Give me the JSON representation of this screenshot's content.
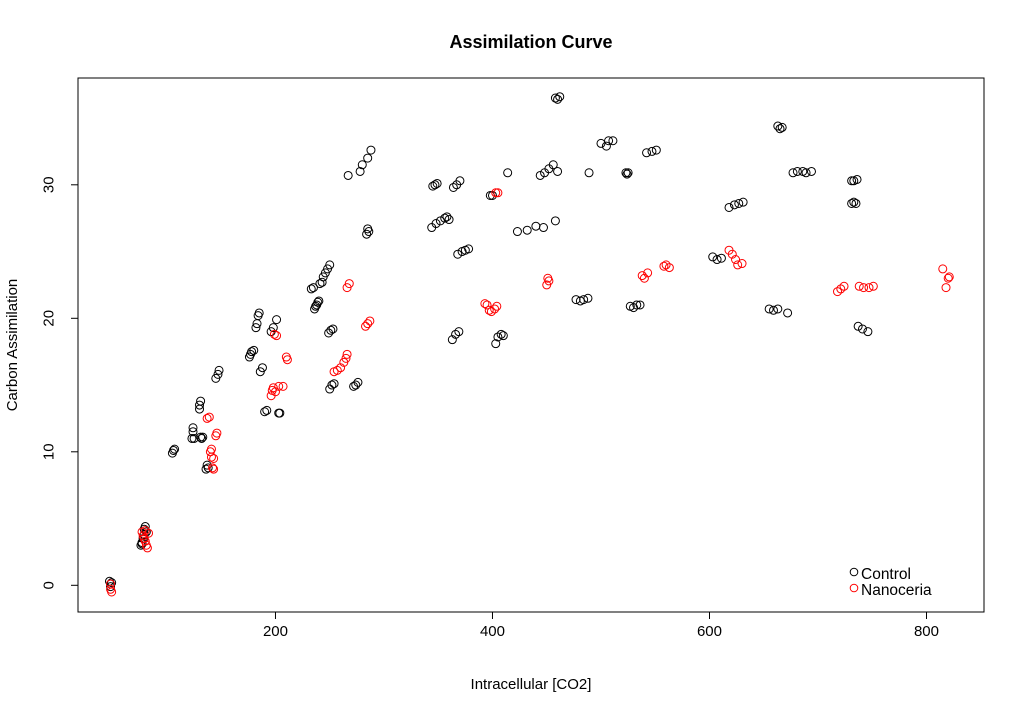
{
  "chart_data": {
    "type": "scatter",
    "title": "Assimilation Curve",
    "xlabel": "Intracellular [CO2]",
    "ylabel": "Carbon Assimilation",
    "xlim": [
      18,
      853
    ],
    "ylim": [
      -2,
      38
    ],
    "xticks": [
      200,
      400,
      600,
      800
    ],
    "yticks": [
      0,
      10,
      20,
      30
    ],
    "grid": false,
    "legend_position": "bottom-right",
    "series": [
      {
        "name": "Control",
        "color": "#000000",
        "marker": "open-circle",
        "points": [
          [
            47,
            0.3
          ],
          [
            48,
            0.1
          ],
          [
            48,
            -0.1
          ],
          [
            49,
            0.2
          ],
          [
            76,
            3.0
          ],
          [
            77,
            3.2
          ],
          [
            77,
            3.1
          ],
          [
            78,
            3.5
          ],
          [
            79,
            3.8
          ],
          [
            79,
            4.2
          ],
          [
            80,
            4.4
          ],
          [
            81,
            4.0
          ],
          [
            105,
            9.9
          ],
          [
            106,
            10.1
          ],
          [
            107,
            10.2
          ],
          [
            123,
            11.0
          ],
          [
            124,
            11.5
          ],
          [
            124,
            11.8
          ],
          [
            125,
            11.0
          ],
          [
            130,
            13.2
          ],
          [
            130,
            13.5
          ],
          [
            131,
            13.8
          ],
          [
            131,
            11.1
          ],
          [
            132,
            11.0
          ],
          [
            133,
            11.1
          ],
          [
            136,
            8.7
          ],
          [
            137,
            9.0
          ],
          [
            138,
            8.8
          ],
          [
            145,
            15.5
          ],
          [
            147,
            15.8
          ],
          [
            148,
            16.1
          ],
          [
            176,
            17.1
          ],
          [
            177,
            17.3
          ],
          [
            178,
            17.5
          ],
          [
            180,
            17.6
          ],
          [
            182,
            19.3
          ],
          [
            183,
            19.6
          ],
          [
            184,
            20.2
          ],
          [
            185,
            20.4
          ],
          [
            186,
            16.0
          ],
          [
            188,
            16.3
          ],
          [
            190,
            13.0
          ],
          [
            192,
            13.1
          ],
          [
            196,
            19.0
          ],
          [
            198,
            19.3
          ],
          [
            201,
            19.9
          ],
          [
            203,
            12.9
          ],
          [
            204,
            12.9
          ],
          [
            233,
            22.2
          ],
          [
            235,
            22.3
          ],
          [
            236,
            20.7
          ],
          [
            237,
            20.9
          ],
          [
            238,
            21.0
          ],
          [
            239,
            21.2
          ],
          [
            240,
            21.3
          ],
          [
            241,
            22.6
          ],
          [
            243,
            22.7
          ],
          [
            244,
            23.1
          ],
          [
            246,
            23.4
          ],
          [
            248,
            23.7
          ],
          [
            250,
            24.0
          ],
          [
            249,
            18.9
          ],
          [
            251,
            19.1
          ],
          [
            253,
            19.2
          ],
          [
            250,
            14.7
          ],
          [
            252,
            15.0
          ],
          [
            254,
            15.1
          ],
          [
            267,
            30.7
          ],
          [
            272,
            14.9
          ],
          [
            274,
            15.0
          ],
          [
            276,
            15.2
          ],
          [
            278,
            31.0
          ],
          [
            280,
            31.5
          ],
          [
            284,
            26.3
          ],
          [
            285,
            26.7
          ],
          [
            286,
            26.5
          ],
          [
            285,
            32.0
          ],
          [
            288,
            32.6
          ],
          [
            344,
            26.8
          ],
          [
            348,
            27.1
          ],
          [
            352,
            27.3
          ],
          [
            356,
            27.5
          ],
          [
            358,
            27.6
          ],
          [
            360,
            27.4
          ],
          [
            345,
            29.9
          ],
          [
            347,
            30.0
          ],
          [
            349,
            30.1
          ],
          [
            363,
            18.4
          ],
          [
            366,
            18.8
          ],
          [
            369,
            19.0
          ],
          [
            368,
            24.8
          ],
          [
            372,
            25.0
          ],
          [
            375,
            25.1
          ],
          [
            378,
            25.2
          ],
          [
            364,
            29.8
          ],
          [
            367,
            30.0
          ],
          [
            370,
            30.3
          ],
          [
            398,
            29.2
          ],
          [
            400,
            29.2
          ],
          [
            403,
            18.1
          ],
          [
            405,
            18.6
          ],
          [
            408,
            18.8
          ],
          [
            410,
            18.7
          ],
          [
            414,
            30.9
          ],
          [
            423,
            26.5
          ],
          [
            432,
            26.6
          ],
          [
            440,
            26.9
          ],
          [
            444,
            30.7
          ],
          [
            448,
            30.9
          ],
          [
            447,
            26.8
          ],
          [
            452,
            31.2
          ],
          [
            456,
            31.5
          ],
          [
            458,
            27.3
          ],
          [
            460,
            31.0
          ],
          [
            458,
            36.5
          ],
          [
            460,
            36.4
          ],
          [
            462,
            36.6
          ],
          [
            477,
            21.4
          ],
          [
            481,
            21.3
          ],
          [
            484,
            21.4
          ],
          [
            488,
            21.5
          ],
          [
            489,
            30.9
          ],
          [
            500,
            33.1
          ],
          [
            505,
            32.9
          ],
          [
            507,
            33.3
          ],
          [
            511,
            33.3
          ],
          [
            523,
            30.9
          ],
          [
            524,
            30.8
          ],
          [
            525,
            30.9
          ],
          [
            527,
            20.9
          ],
          [
            530,
            20.8
          ],
          [
            533,
            21.0
          ],
          [
            536,
            21.0
          ],
          [
            542,
            32.4
          ],
          [
            547,
            32.5
          ],
          [
            551,
            32.6
          ],
          [
            603,
            24.6
          ],
          [
            607,
            24.4
          ],
          [
            611,
            24.5
          ],
          [
            618,
            28.3
          ],
          [
            623,
            28.5
          ],
          [
            627,
            28.6
          ],
          [
            631,
            28.7
          ],
          [
            655,
            20.7
          ],
          [
            659,
            20.6
          ],
          [
            663,
            20.7
          ],
          [
            672,
            20.4
          ],
          [
            663,
            34.4
          ],
          [
            665,
            34.2
          ],
          [
            667,
            34.3
          ],
          [
            677,
            30.9
          ],
          [
            681,
            31.0
          ],
          [
            686,
            31.0
          ],
          [
            689,
            30.9
          ],
          [
            694,
            31.0
          ],
          [
            731,
            30.3
          ],
          [
            733,
            30.3
          ],
          [
            736,
            30.4
          ],
          [
            731,
            28.6
          ],
          [
            733,
            28.7
          ],
          [
            735,
            28.6
          ],
          [
            737,
            19.4
          ],
          [
            741,
            19.2
          ],
          [
            746,
            19.0
          ]
        ]
      },
      {
        "name": "Nanoceria",
        "color": "#ff0000",
        "marker": "open-circle",
        "points": [
          [
            48,
            0.1
          ],
          [
            48,
            -0.3
          ],
          [
            49,
            -0.5
          ],
          [
            77,
            4.0
          ],
          [
            78,
            3.7
          ],
          [
            79,
            3.5
          ],
          [
            80,
            3.3
          ],
          [
            81,
            3.0
          ],
          [
            82,
            2.8
          ],
          [
            83,
            3.9
          ],
          [
            80,
            4.1
          ],
          [
            137,
            12.5
          ],
          [
            139,
            12.6
          ],
          [
            140,
            10.0
          ],
          [
            141,
            10.2
          ],
          [
            141,
            9.6
          ],
          [
            143,
            9.5
          ],
          [
            142,
            8.8
          ],
          [
            143,
            8.7
          ],
          [
            145,
            11.2
          ],
          [
            146,
            11.4
          ],
          [
            196,
            14.2
          ],
          [
            197,
            14.6
          ],
          [
            198,
            14.8
          ],
          [
            200,
            14.5
          ],
          [
            199,
            18.8
          ],
          [
            201,
            18.7
          ],
          [
            203,
            14.9
          ],
          [
            207,
            14.9
          ],
          [
            210,
            17.1
          ],
          [
            211,
            16.9
          ],
          [
            254,
            16.0
          ],
          [
            257,
            16.1
          ],
          [
            260,
            16.3
          ],
          [
            263,
            16.7
          ],
          [
            265,
            17.0
          ],
          [
            266,
            17.3
          ],
          [
            266,
            22.3
          ],
          [
            268,
            22.6
          ],
          [
            283,
            19.4
          ],
          [
            285,
            19.6
          ],
          [
            287,
            19.8
          ],
          [
            393,
            21.1
          ],
          [
            395,
            21.0
          ],
          [
            397,
            20.6
          ],
          [
            399,
            20.5
          ],
          [
            402,
            20.7
          ],
          [
            404,
            20.9
          ],
          [
            403,
            29.4
          ],
          [
            405,
            29.4
          ],
          [
            450,
            22.5
          ],
          [
            451,
            23.0
          ],
          [
            452,
            22.8
          ],
          [
            538,
            23.2
          ],
          [
            540,
            23.0
          ],
          [
            543,
            23.4
          ],
          [
            558,
            23.9
          ],
          [
            560,
            24.0
          ],
          [
            563,
            23.8
          ],
          [
            618,
            25.1
          ],
          [
            621,
            24.8
          ],
          [
            624,
            24.4
          ],
          [
            626,
            24.0
          ],
          [
            630,
            24.1
          ],
          [
            718,
            22.0
          ],
          [
            721,
            22.2
          ],
          [
            724,
            22.4
          ],
          [
            738,
            22.4
          ],
          [
            742,
            22.3
          ],
          [
            747,
            22.3
          ],
          [
            751,
            22.4
          ],
          [
            815,
            23.7
          ],
          [
            818,
            22.3
          ],
          [
            820,
            23.0
          ],
          [
            821,
            23.1
          ]
        ]
      }
    ]
  }
}
